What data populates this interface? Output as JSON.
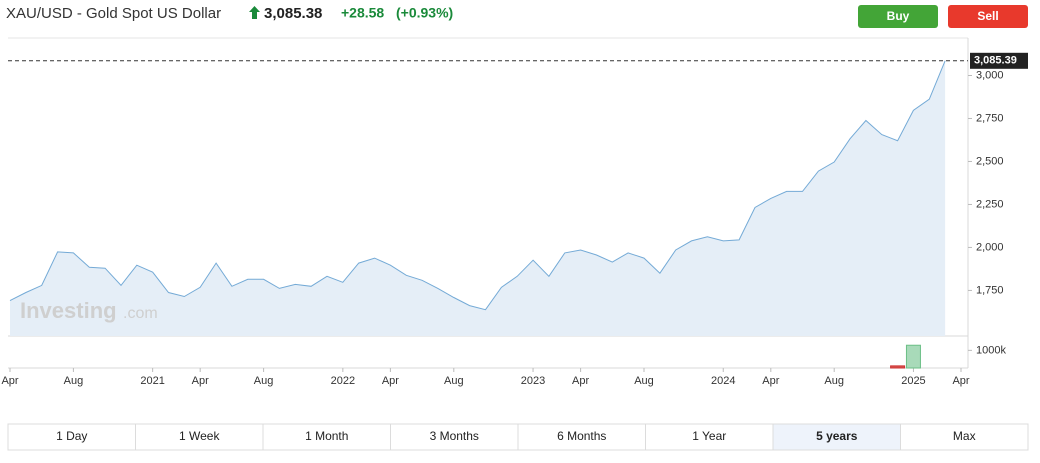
{
  "header": {
    "symbol": "XAU/USD - Gold Spot US Dollar",
    "price": "3,085.38",
    "change": "+28.58",
    "change_pct": "(+0.93%)",
    "buy": "Buy",
    "sell": "Sell"
  },
  "chart_data": {
    "type": "area",
    "color": "#74aad6",
    "fill": "#e5eef7",
    "grid": false,
    "x": [
      "2020-04",
      "2020-05",
      "2020-06",
      "2020-07",
      "2020-08",
      "2020-09",
      "2020-10",
      "2020-11",
      "2020-12",
      "2021-01",
      "2021-02",
      "2021-03",
      "2021-04",
      "2021-05",
      "2021-06",
      "2021-07",
      "2021-08",
      "2021-09",
      "2021-10",
      "2021-11",
      "2021-12",
      "2022-01",
      "2022-02",
      "2022-03",
      "2022-04",
      "2022-05",
      "2022-06",
      "2022-07",
      "2022-08",
      "2022-09",
      "2022-10",
      "2022-11",
      "2022-12",
      "2023-01",
      "2023-02",
      "2023-03",
      "2023-04",
      "2023-05",
      "2023-06",
      "2023-07",
      "2023-08",
      "2023-09",
      "2023-10",
      "2023-11",
      "2023-12",
      "2024-01",
      "2024-02",
      "2024-03",
      "2024-04",
      "2024-05",
      "2024-06",
      "2024-07",
      "2024-08",
      "2024-09",
      "2024-10",
      "2024-11",
      "2024-12",
      "2025-01",
      "2025-02",
      "2025-03"
    ],
    "values": [
      1691,
      1738,
      1779,
      1974,
      1968,
      1885,
      1879,
      1779,
      1897,
      1856,
      1738,
      1715,
      1768,
      1909,
      1774,
      1815,
      1815,
      1762,
      1785,
      1774,
      1832,
      1797,
      1909,
      1938,
      1897,
      1838,
      1809,
      1762,
      1709,
      1662,
      1638,
      1768,
      1832,
      1926,
      1832,
      1968,
      1985,
      1956,
      1915,
      1968,
      1938,
      1850,
      1985,
      2038,
      2062,
      2038,
      2044,
      2232,
      2285,
      2326,
      2326,
      2444,
      2497,
      2632,
      2738,
      2656,
      2621,
      2797,
      2862,
      3085.39
    ],
    "last_label": "3,085.39",
    "xlim": [
      "2020-04",
      "2025-04"
    ],
    "xticks": [
      {
        "value": "2020-04",
        "label": "Apr"
      },
      {
        "value": "2020-08",
        "label": "Aug"
      },
      {
        "value": "2021-01",
        "label": "2021"
      },
      {
        "value": "2021-04",
        "label": "Apr"
      },
      {
        "value": "2021-08",
        "label": "Aug"
      },
      {
        "value": "2022-01",
        "label": "2022"
      },
      {
        "value": "2022-04",
        "label": "Apr"
      },
      {
        "value": "2022-08",
        "label": "Aug"
      },
      {
        "value": "2023-01",
        "label": "2023"
      },
      {
        "value": "2023-04",
        "label": "Apr"
      },
      {
        "value": "2023-08",
        "label": "Aug"
      },
      {
        "value": "2024-01",
        "label": "2024"
      },
      {
        "value": "2024-04",
        "label": "Apr"
      },
      {
        "value": "2024-08",
        "label": "Aug"
      },
      {
        "value": "2025-01",
        "label": "2025"
      },
      {
        "value": "2025-04",
        "label": "Apr"
      }
    ],
    "ylim": [
      1485,
      3218
    ],
    "yticks": [
      {
        "value": 1750,
        "label": "1,750"
      },
      {
        "value": 2000,
        "label": "2,000"
      },
      {
        "value": 2250,
        "label": "2,250"
      },
      {
        "value": 2500,
        "label": "2,500"
      },
      {
        "value": 2750,
        "label": "2,750"
      },
      {
        "value": 3000,
        "label": "3,000"
      }
    ],
    "watermark": [
      "Investing",
      ".com"
    ],
    "volume": {
      "x": [
        "2024-12",
        "2025-01"
      ],
      "values": [
        120000,
        1290000
      ],
      "colors": [
        "#d9534f",
        "#a8dab9"
      ],
      "ylim": [
        0,
        1700000
      ],
      "yticks": [
        {
          "value": 1000000,
          "label": "1000k"
        }
      ]
    }
  },
  "periods": [
    "1 Day",
    "1 Week",
    "1 Month",
    "3 Months",
    "6 Months",
    "1 Year",
    "5 years",
    "Max"
  ],
  "selected_period": 6
}
